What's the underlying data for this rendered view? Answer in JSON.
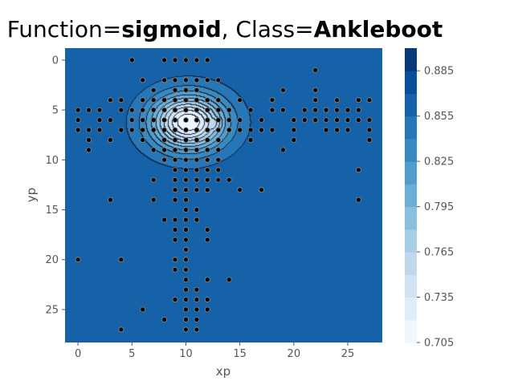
{
  "title": {
    "prefix": "Function=",
    "function": "sigmoid",
    "middle": ", Class=",
    "class": "Ankleboot"
  },
  "chart_data": {
    "type": "heatmap",
    "subtype": "filled-contour",
    "xlabel": "xp",
    "ylabel": "yp",
    "xlim": [
      -1.2,
      28.2
    ],
    "ylim": [
      28.3,
      -1.2
    ],
    "x_ticks": [
      0,
      5,
      10,
      15,
      20,
      25
    ],
    "y_ticks": [
      0,
      5,
      10,
      15,
      20,
      25
    ],
    "colormap": "Blues",
    "colorbar": {
      "min": 0.705,
      "max": 0.9,
      "tick_values": [
        0.705,
        0.735,
        0.765,
        0.795,
        0.825,
        0.855,
        0.885
      ],
      "tick_labels": [
        "0.705",
        "0.735",
        "0.765",
        "0.795",
        "0.825",
        "0.855",
        "0.885"
      ],
      "level_step": 0.015
    },
    "field": {
      "background": 0.888,
      "plateau_value": 0.862,
      "min_value": 0.713,
      "min_center": [
        10.2,
        6.2
      ]
    },
    "points": [
      [
        5,
        0
      ],
      [
        8,
        0
      ],
      [
        9,
        0
      ],
      [
        10,
        0
      ],
      [
        11,
        0
      ],
      [
        12,
        0
      ],
      [
        22,
        1
      ],
      [
        6,
        2
      ],
      [
        8,
        2
      ],
      [
        9,
        2
      ],
      [
        10,
        2
      ],
      [
        11,
        2
      ],
      [
        12,
        2
      ],
      [
        13,
        2
      ],
      [
        7,
        3
      ],
      [
        9,
        3
      ],
      [
        10,
        3
      ],
      [
        11,
        3
      ],
      [
        19,
        3
      ],
      [
        22,
        3
      ],
      [
        3,
        4
      ],
      [
        4,
        4
      ],
      [
        6,
        4
      ],
      [
        7,
        4
      ],
      [
        8,
        4
      ],
      [
        9,
        4
      ],
      [
        10,
        4
      ],
      [
        11,
        4
      ],
      [
        12,
        4
      ],
      [
        13,
        4
      ],
      [
        15,
        4
      ],
      [
        18,
        4
      ],
      [
        22,
        4
      ],
      [
        24,
        4
      ],
      [
        26,
        4
      ],
      [
        27,
        4
      ],
      [
        0,
        5
      ],
      [
        1,
        5
      ],
      [
        2,
        5
      ],
      [
        4,
        5
      ],
      [
        5,
        5
      ],
      [
        6,
        5
      ],
      [
        7,
        5
      ],
      [
        8,
        5
      ],
      [
        9,
        5
      ],
      [
        10,
        5
      ],
      [
        11,
        5
      ],
      [
        12,
        5
      ],
      [
        13,
        5
      ],
      [
        14,
        5
      ],
      [
        16,
        5
      ],
      [
        18,
        5
      ],
      [
        19,
        5
      ],
      [
        21,
        5
      ],
      [
        22,
        5
      ],
      [
        23,
        5
      ],
      [
        24,
        5
      ],
      [
        25,
        5
      ],
      [
        26,
        5
      ],
      [
        0,
        6
      ],
      [
        2,
        6
      ],
      [
        3,
        6
      ],
      [
        5,
        6
      ],
      [
        6,
        6
      ],
      [
        7,
        6
      ],
      [
        8,
        6
      ],
      [
        9,
        6
      ],
      [
        10,
        6
      ],
      [
        11,
        6
      ],
      [
        12,
        6
      ],
      [
        13,
        6
      ],
      [
        14,
        6
      ],
      [
        15,
        6
      ],
      [
        17,
        6
      ],
      [
        20,
        6
      ],
      [
        21,
        6
      ],
      [
        22,
        6
      ],
      [
        23,
        6
      ],
      [
        24,
        6
      ],
      [
        25,
        6
      ],
      [
        26,
        6
      ],
      [
        27,
        6
      ],
      [
        0,
        7
      ],
      [
        1,
        7
      ],
      [
        2,
        7
      ],
      [
        4,
        7
      ],
      [
        5,
        7
      ],
      [
        6,
        7
      ],
      [
        7,
        7
      ],
      [
        8,
        7
      ],
      [
        9,
        7
      ],
      [
        10,
        7
      ],
      [
        11,
        7
      ],
      [
        12,
        7
      ],
      [
        13,
        7
      ],
      [
        14,
        7
      ],
      [
        15,
        7
      ],
      [
        16,
        7
      ],
      [
        17,
        7
      ],
      [
        18,
        7
      ],
      [
        20,
        7
      ],
      [
        23,
        7
      ],
      [
        24,
        7
      ],
      [
        25,
        7
      ],
      [
        27,
        7
      ],
      [
        1,
        8
      ],
      [
        3,
        8
      ],
      [
        6,
        8
      ],
      [
        8,
        8
      ],
      [
        9,
        8
      ],
      [
        10,
        8
      ],
      [
        11,
        8
      ],
      [
        12,
        8
      ],
      [
        13,
        8
      ],
      [
        16,
        8
      ],
      [
        20,
        8
      ],
      [
        27,
        8
      ],
      [
        1,
        9
      ],
      [
        7,
        9
      ],
      [
        8,
        9
      ],
      [
        9,
        9
      ],
      [
        10,
        9
      ],
      [
        11,
        9
      ],
      [
        12,
        9
      ],
      [
        13,
        9
      ],
      [
        19,
        9
      ],
      [
        8,
        10
      ],
      [
        9,
        10
      ],
      [
        10,
        10
      ],
      [
        11,
        10
      ],
      [
        12,
        10
      ],
      [
        13,
        10
      ],
      [
        9,
        11
      ],
      [
        10,
        11
      ],
      [
        11,
        11
      ],
      [
        12,
        11
      ],
      [
        13,
        11
      ],
      [
        26,
        11
      ],
      [
        7,
        12
      ],
      [
        9,
        12
      ],
      [
        10,
        12
      ],
      [
        11,
        12
      ],
      [
        12,
        12
      ],
      [
        13,
        12
      ],
      [
        14,
        12
      ],
      [
        9,
        13
      ],
      [
        10,
        13
      ],
      [
        11,
        13
      ],
      [
        12,
        13
      ],
      [
        15,
        13
      ],
      [
        17,
        13
      ],
      [
        3,
        14
      ],
      [
        7,
        14
      ],
      [
        9,
        14
      ],
      [
        10,
        14
      ],
      [
        26,
        14
      ],
      [
        10,
        15
      ],
      [
        11,
        15
      ],
      [
        8,
        16
      ],
      [
        9,
        16
      ],
      [
        10,
        16
      ],
      [
        11,
        16
      ],
      [
        9,
        17
      ],
      [
        10,
        17
      ],
      [
        12,
        17
      ],
      [
        9,
        18
      ],
      [
        10,
        18
      ],
      [
        12,
        18
      ],
      [
        10,
        19
      ],
      [
        0,
        20
      ],
      [
        4,
        20
      ],
      [
        9,
        20
      ],
      [
        10,
        20
      ],
      [
        9,
        21
      ],
      [
        10,
        21
      ],
      [
        10,
        22
      ],
      [
        12,
        22
      ],
      [
        14,
        22
      ],
      [
        10,
        23
      ],
      [
        11,
        23
      ],
      [
        9,
        24
      ],
      [
        10,
        24
      ],
      [
        11,
        24
      ],
      [
        12,
        24
      ],
      [
        6,
        25
      ],
      [
        10,
        25
      ],
      [
        11,
        25
      ],
      [
        12,
        25
      ],
      [
        8,
        26
      ],
      [
        10,
        26
      ],
      [
        11,
        26
      ],
      [
        4,
        27
      ],
      [
        10,
        27
      ],
      [
        11,
        27
      ]
    ]
  }
}
